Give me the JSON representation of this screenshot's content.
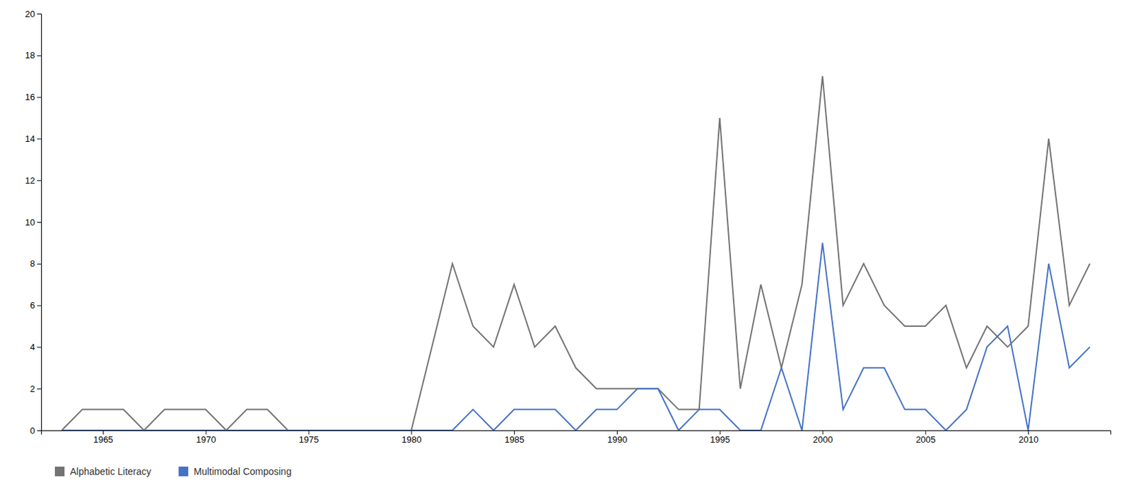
{
  "chart_data": {
    "type": "line",
    "x": [
      1963,
      1964,
      1965,
      1966,
      1967,
      1968,
      1969,
      1970,
      1971,
      1972,
      1973,
      1974,
      1975,
      1976,
      1977,
      1978,
      1979,
      1980,
      1981,
      1982,
      1983,
      1984,
      1985,
      1986,
      1987,
      1988,
      1989,
      1990,
      1991,
      1992,
      1993,
      1994,
      1995,
      1996,
      1997,
      1998,
      1999,
      2000,
      2001,
      2002,
      2003,
      2004,
      2005,
      2006,
      2007,
      2008,
      2009,
      2010,
      2011,
      2012,
      2013
    ],
    "series": [
      {
        "name": "Alphabetic Literacy",
        "color": "#737373",
        "values": [
          0,
          1,
          1,
          1,
          0,
          1,
          1,
          1,
          0,
          1,
          1,
          0,
          0,
          0,
          0,
          0,
          0,
          0,
          4,
          8,
          5,
          4,
          7,
          4,
          5,
          3,
          2,
          2,
          2,
          2,
          1,
          1,
          15,
          2,
          7,
          3,
          7,
          17,
          6,
          8,
          6,
          5,
          5,
          6,
          3,
          5,
          4,
          5,
          14,
          6,
          8
        ]
      },
      {
        "name": "Multimodal Composing",
        "color": "#4472C4",
        "values": [
          0,
          0,
          0,
          0,
          0,
          0,
          0,
          0,
          0,
          0,
          0,
          0,
          0,
          0,
          0,
          0,
          0,
          0,
          0,
          0,
          1,
          0,
          1,
          1,
          1,
          0,
          1,
          1,
          2,
          2,
          0,
          1,
          1,
          0,
          0,
          3,
          0,
          9,
          1,
          3,
          3,
          1,
          1,
          0,
          1,
          4,
          5,
          0,
          8,
          3,
          4
        ]
      }
    ],
    "xlim": [
      1962,
      2014
    ],
    "xticks": [
      1965,
      1970,
      1975,
      1980,
      1985,
      1990,
      1995,
      2000,
      2005,
      2010
    ],
    "ylim": [
      0,
      20
    ],
    "yticks": [
      0,
      2,
      4,
      6,
      8,
      10,
      12,
      14,
      16,
      18,
      20
    ],
    "grid": false,
    "legend": "bottom"
  }
}
